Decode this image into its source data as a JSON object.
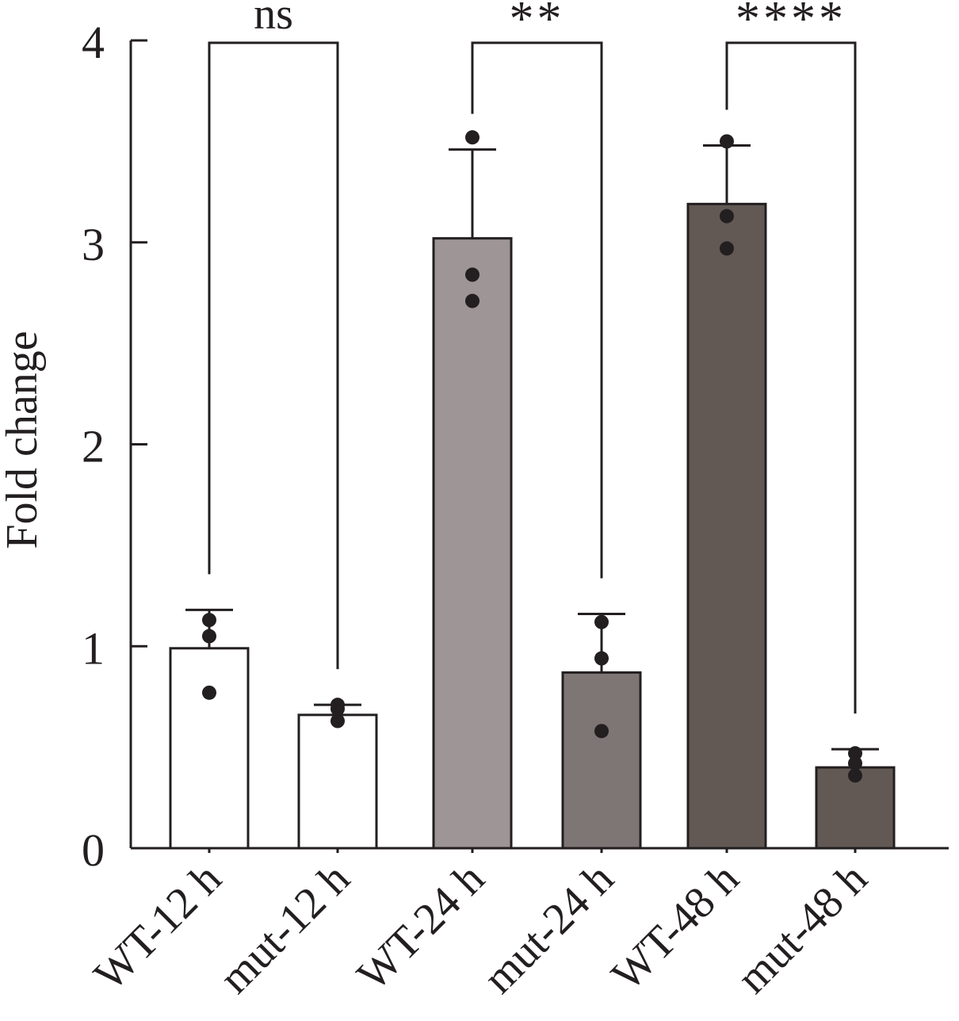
{
  "chart_data": {
    "type": "bar",
    "title": "",
    "xlabel": "",
    "ylabel": "Fold change",
    "ylim": [
      0,
      4
    ],
    "yticks": [
      "0",
      "1",
      "2",
      "3",
      "4"
    ],
    "categories": [
      "WT-12 h",
      "mut-12 h",
      "WT-24 h",
      "mut-24 h",
      "WT-48 h",
      "mut-48 h"
    ],
    "values": [
      0.99,
      0.66,
      3.02,
      0.87,
      3.19,
      0.4
    ],
    "error": [
      0.19,
      0.05,
      0.44,
      0.29,
      0.29,
      0.09
    ],
    "points": [
      [
        1.13,
        1.05,
        0.77
      ],
      [
        0.71,
        0.69,
        0.63
      ],
      [
        3.52,
        2.84,
        2.71
      ],
      [
        1.12,
        0.94,
        0.58
      ],
      [
        3.5,
        3.13,
        2.97
      ],
      [
        0.47,
        0.42,
        0.36
      ]
    ],
    "bar_colors": [
      "#ffffff",
      "#ffffff",
      "#9d9596",
      "#7e7675",
      "#625955",
      "#625955"
    ],
    "comparisons": [
      {
        "from": 0,
        "to": 1,
        "label": "ns"
      },
      {
        "from": 2,
        "to": 3,
        "label": "**"
      },
      {
        "from": 4,
        "to": 5,
        "label": "****"
      }
    ]
  }
}
